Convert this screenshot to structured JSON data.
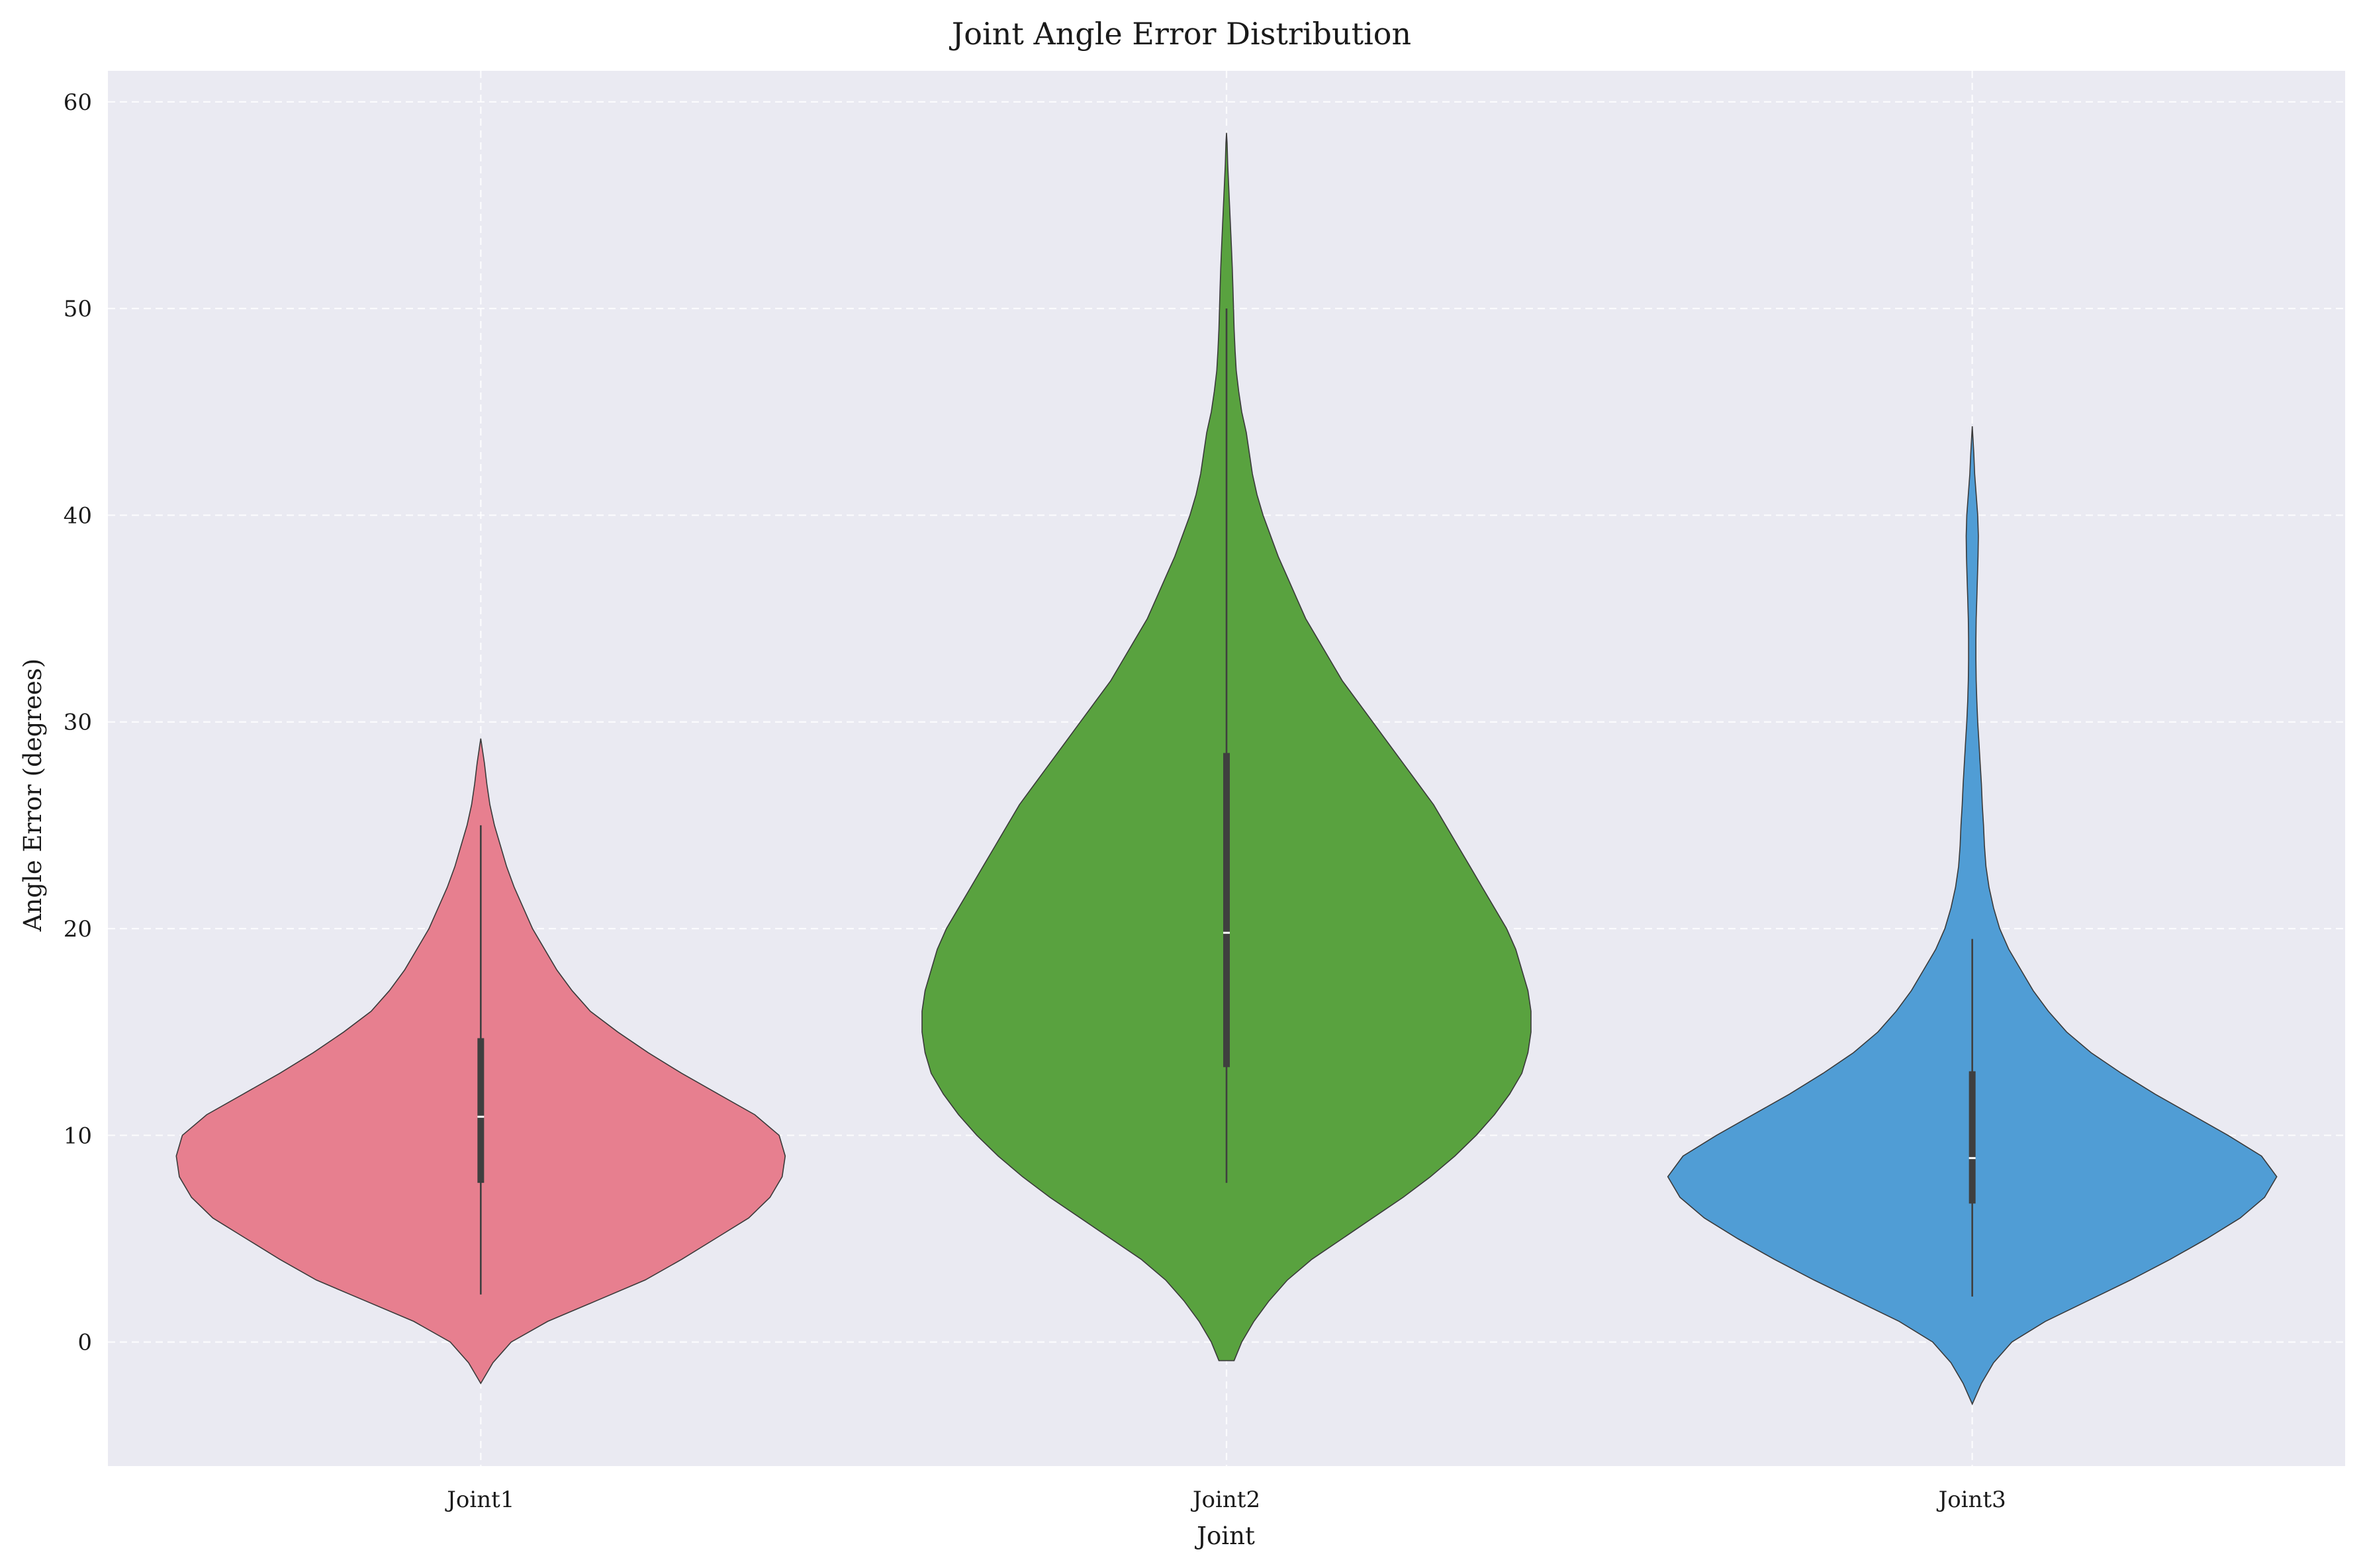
{
  "chart_data": {
    "type": "violin",
    "title": "Joint Angle Error Distribution",
    "xlabel": "Joint",
    "ylabel": "Angle Error (degrees)",
    "categories": [
      "Joint1",
      "Joint2",
      "Joint3"
    ],
    "ylim": [
      -6,
      61.5
    ],
    "yticks": [
      0,
      10,
      20,
      30,
      40,
      50,
      60
    ],
    "grid": true,
    "colors": {
      "Joint1": "#e77f8f",
      "Joint2": "#59a23f",
      "Joint3": "#509dd5",
      "background": "#eaeaf2"
    },
    "series": [
      {
        "category": "Joint1",
        "min": 2.3,
        "q1": 7.7,
        "median": 10.9,
        "q3": 14.7,
        "max": 25.0,
        "density_profile": [
          [
            -2.0,
            0.0
          ],
          [
            -1.0,
            0.04
          ],
          [
            0.0,
            0.1
          ],
          [
            1.0,
            0.22
          ],
          [
            2.0,
            0.38
          ],
          [
            3.0,
            0.54
          ],
          [
            4.0,
            0.66
          ],
          [
            5.0,
            0.77
          ],
          [
            6.0,
            0.88
          ],
          [
            7.0,
            0.95
          ],
          [
            8.0,
            0.99
          ],
          [
            9.0,
            1.0
          ],
          [
            10.0,
            0.98
          ],
          [
            11.0,
            0.9
          ],
          [
            12.0,
            0.78
          ],
          [
            13.0,
            0.66
          ],
          [
            14.0,
            0.55
          ],
          [
            15.0,
            0.45
          ],
          [
            16.0,
            0.36
          ],
          [
            17.0,
            0.3
          ],
          [
            18.0,
            0.25
          ],
          [
            19.0,
            0.21
          ],
          [
            20.0,
            0.17
          ],
          [
            21.0,
            0.14
          ],
          [
            22.0,
            0.11
          ],
          [
            23.0,
            0.085
          ],
          [
            24.0,
            0.065
          ],
          [
            25.0,
            0.045
          ],
          [
            26.0,
            0.03
          ],
          [
            27.0,
            0.02
          ],
          [
            28.0,
            0.012
          ],
          [
            29.2,
            0.0
          ]
        ]
      },
      {
        "category": "Joint2",
        "min": 7.7,
        "q1": 13.3,
        "median": 19.8,
        "q3": 28.5,
        "max": 50.0,
        "density_profile": [
          [
            -0.9,
            0.025
          ],
          [
            0.0,
            0.05
          ],
          [
            1.0,
            0.09
          ],
          [
            2.0,
            0.14
          ],
          [
            3.0,
            0.2
          ],
          [
            4.0,
            0.28
          ],
          [
            5.0,
            0.38
          ],
          [
            6.0,
            0.48
          ],
          [
            7.0,
            0.58
          ],
          [
            8.0,
            0.67
          ],
          [
            9.0,
            0.75
          ],
          [
            10.0,
            0.82
          ],
          [
            11.0,
            0.88
          ],
          [
            12.0,
            0.93
          ],
          [
            13.0,
            0.97
          ],
          [
            14.0,
            0.99
          ],
          [
            15.0,
            1.0
          ],
          [
            16.0,
            1.0
          ],
          [
            17.0,
            0.99
          ],
          [
            18.0,
            0.97
          ],
          [
            19.0,
            0.95
          ],
          [
            20.0,
            0.92
          ],
          [
            21.0,
            0.88
          ],
          [
            22.0,
            0.84
          ],
          [
            23.0,
            0.8
          ],
          [
            24.0,
            0.76
          ],
          [
            25.0,
            0.72
          ],
          [
            26.0,
            0.68
          ],
          [
            27.0,
            0.63
          ],
          [
            28.0,
            0.58
          ],
          [
            29.0,
            0.53
          ],
          [
            30.0,
            0.48
          ],
          [
            31.0,
            0.43
          ],
          [
            32.0,
            0.38
          ],
          [
            33.0,
            0.34
          ],
          [
            34.0,
            0.3
          ],
          [
            35.0,
            0.26
          ],
          [
            36.0,
            0.23
          ],
          [
            37.0,
            0.2
          ],
          [
            38.0,
            0.17
          ],
          [
            39.0,
            0.145
          ],
          [
            40.0,
            0.12
          ],
          [
            41.0,
            0.1
          ],
          [
            42.0,
            0.085
          ],
          [
            43.0,
            0.075
          ],
          [
            44.0,
            0.065
          ],
          [
            45.0,
            0.05
          ],
          [
            46.0,
            0.04
          ],
          [
            47.0,
            0.032
          ],
          [
            48.0,
            0.028
          ],
          [
            49.0,
            0.025
          ],
          [
            50.0,
            0.023
          ],
          [
            51.0,
            0.021
          ],
          [
            52.0,
            0.019
          ],
          [
            53.0,
            0.016
          ],
          [
            54.0,
            0.013
          ],
          [
            55.0,
            0.01
          ],
          [
            56.0,
            0.007
          ],
          [
            57.0,
            0.004
          ],
          [
            58.0,
            0.002
          ],
          [
            58.5,
            0.0
          ]
        ]
      },
      {
        "category": "Joint3",
        "min": 2.2,
        "q1": 6.7,
        "median": 8.9,
        "q3": 13.1,
        "max": 19.5,
        "density_profile": [
          [
            -3.0,
            0.0
          ],
          [
            -2.0,
            0.03
          ],
          [
            -1.0,
            0.07
          ],
          [
            0.0,
            0.13
          ],
          [
            1.0,
            0.24
          ],
          [
            2.0,
            0.38
          ],
          [
            3.0,
            0.52
          ],
          [
            4.0,
            0.65
          ],
          [
            5.0,
            0.77
          ],
          [
            6.0,
            0.88
          ],
          [
            7.0,
            0.96
          ],
          [
            8.0,
            1.0
          ],
          [
            9.0,
            0.95
          ],
          [
            10.0,
            0.84
          ],
          [
            11.0,
            0.72
          ],
          [
            12.0,
            0.6
          ],
          [
            13.0,
            0.49
          ],
          [
            14.0,
            0.39
          ],
          [
            15.0,
            0.31
          ],
          [
            16.0,
            0.25
          ],
          [
            17.0,
            0.2
          ],
          [
            18.0,
            0.16
          ],
          [
            19.0,
            0.12
          ],
          [
            20.0,
            0.09
          ],
          [
            21.0,
            0.07
          ],
          [
            22.0,
            0.055
          ],
          [
            23.0,
            0.045
          ],
          [
            24.0,
            0.04
          ],
          [
            25.0,
            0.037
          ],
          [
            26.0,
            0.033
          ],
          [
            27.0,
            0.03
          ],
          [
            28.0,
            0.026
          ],
          [
            29.0,
            0.022
          ],
          [
            30.0,
            0.018
          ],
          [
            31.0,
            0.015
          ],
          [
            32.0,
            0.013
          ],
          [
            33.0,
            0.012
          ],
          [
            34.0,
            0.012
          ],
          [
            35.0,
            0.013
          ],
          [
            36.0,
            0.015
          ],
          [
            37.0,
            0.017
          ],
          [
            38.0,
            0.019
          ],
          [
            39.0,
            0.02
          ],
          [
            40.0,
            0.018
          ],
          [
            41.0,
            0.013
          ],
          [
            42.0,
            0.008
          ],
          [
            43.0,
            0.005
          ],
          [
            44.3,
            0.0
          ]
        ]
      }
    ]
  }
}
